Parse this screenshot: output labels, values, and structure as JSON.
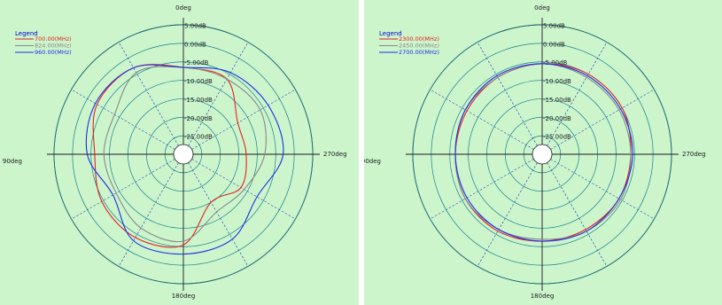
{
  "colors": {
    "panel_background": "#ccf5cc",
    "grid_line": "#1a1a1a",
    "grid_circle": "#1a7f8a",
    "dashed_line": "#2a4fb3"
  },
  "chart_data": [
    {
      "type": "polar",
      "angle_labels": {
        "top": "0deg",
        "left": "90deg",
        "right": "270deg",
        "bottom": "180deg"
      },
      "radial_labels": [
        "5.00dB",
        "0.00dB",
        "-5.00dB",
        "-10.00dB",
        "-15.00dB",
        "-20.00dB",
        "-25.00dB"
      ],
      "radial_label_values": [
        5,
        0,
        -5,
        -10,
        -15,
        -20,
        -25
      ],
      "r_range": [
        -30,
        5
      ],
      "angle_direction": "counterclockwise-from-top",
      "grid": true,
      "legend": {
        "title": "Legend",
        "position": "top-left"
      },
      "series": [
        {
          "name": "700.00(MHz)",
          "color": "#e62020",
          "theta": [
            0,
            30,
            60,
            90,
            120,
            150,
            180,
            210,
            240,
            270,
            300,
            330
          ],
          "values": [
            -6.5,
            -3.0,
            -3.0,
            -6.0,
            -4.5,
            -4.0,
            -5.5,
            -15.0,
            -12.0,
            -13.0,
            -13.0,
            -6.5
          ]
        },
        {
          "name": "824.00(MHz)",
          "color": "#888888",
          "theta": [
            0,
            30,
            60,
            90,
            120,
            150,
            180,
            210,
            240,
            270,
            300,
            330
          ],
          "values": [
            -6.5,
            -4.5,
            -8.5,
            -8.5,
            -9.0,
            -7.0,
            -6.5,
            -12.0,
            -11.0,
            -8.0,
            -6.0,
            -6.5
          ]
        },
        {
          "name": "960.00(MHz)",
          "color": "#1c2ee6",
          "theta": [
            0,
            30,
            60,
            90,
            120,
            150,
            180,
            210,
            240,
            270,
            300,
            330
          ],
          "values": [
            -6.5,
            -3.0,
            -2.5,
            -4.0,
            -8.0,
            -3.0,
            -3.0,
            -3.5,
            -7.0,
            -3.0,
            -3.5,
            -4.5
          ]
        }
      ]
    },
    {
      "type": "polar",
      "angle_labels": {
        "top": "0deg",
        "left": "90deg",
        "right": "270deg",
        "bottom": "180deg"
      },
      "radial_labels": [
        "5.00dB",
        "0.00dB",
        "-5.00dB",
        "-10.00dB",
        "-15.00dB",
        "-20.00dB",
        "-25.00dB"
      ],
      "radial_label_values": [
        5,
        0,
        -5,
        -10,
        -15,
        -20,
        -25
      ],
      "r_range": [
        -30,
        5
      ],
      "angle_direction": "counterclockwise-from-top",
      "grid": true,
      "legend": {
        "title": "Legend",
        "position": "top-left"
      },
      "series": [
        {
          "name": "2300.00(MHz)",
          "color": "#e62020",
          "theta": [
            0,
            30,
            60,
            90,
            120,
            150,
            180,
            210,
            240,
            270,
            300,
            330
          ],
          "values": [
            -5.5,
            -6.0,
            -6.5,
            -6.5,
            -6.0,
            -6.0,
            -6.5,
            -6.5,
            -6.0,
            -6.0,
            -5.0,
            -5.0
          ]
        },
        {
          "name": "2450.00(MHz)",
          "color": "#888888",
          "theta": [
            0,
            30,
            60,
            90,
            120,
            150,
            180,
            210,
            240,
            270,
            300,
            330
          ],
          "values": [
            -5.5,
            -6.0,
            -6.0,
            -6.5,
            -6.0,
            -6.5,
            -7.0,
            -6.0,
            -5.5,
            -6.0,
            -6.0,
            -6.0
          ]
        },
        {
          "name": "2700.00(MHz)",
          "color": "#1c2ee6",
          "theta": [
            0,
            30,
            60,
            90,
            120,
            150,
            180,
            210,
            240,
            270,
            300,
            330
          ],
          "values": [
            -5.5,
            -5.5,
            -6.0,
            -6.5,
            -6.5,
            -6.5,
            -6.5,
            -6.0,
            -6.0,
            -5.5,
            -5.5,
            -5.5
          ]
        }
      ]
    }
  ]
}
